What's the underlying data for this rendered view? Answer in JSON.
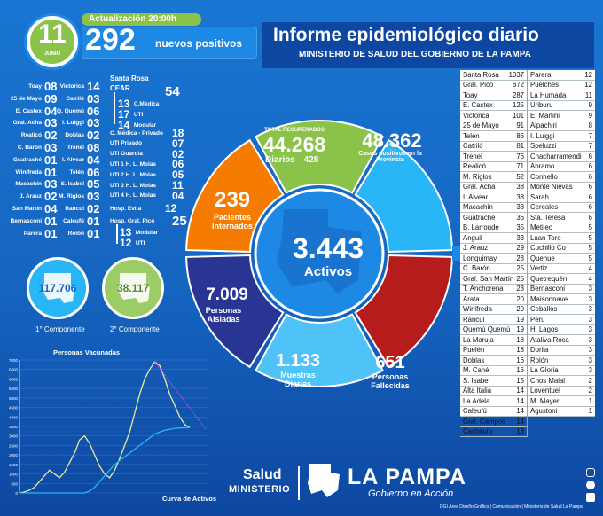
{
  "header": {
    "update_label": "Actualización 20:00h",
    "day": "11",
    "month": "JUNIO",
    "positives_number": "292",
    "positives_label": "nuevos positivos",
    "title": "Informe epidemiológico diario",
    "subtitle": "MINISTERIO DE SALUD DEL GOBIERNO DE LA PAMPA"
  },
  "localities_left": [
    {
      "name": "Toay",
      "value": "08"
    },
    {
      "name": "25 de Mayo",
      "value": "09"
    },
    {
      "name": "E. Castex",
      "value": "04"
    },
    {
      "name": "Gral. Acha",
      "value": "03"
    },
    {
      "name": "Realicó",
      "value": "02"
    },
    {
      "name": "C. Barón",
      "value": "03"
    },
    {
      "name": "Guatraché",
      "value": "01"
    },
    {
      "name": "Winifreda",
      "value": "01"
    },
    {
      "name": "Macachín",
      "value": "03"
    },
    {
      "name": "J. Arauz",
      "value": "02"
    },
    {
      "name": "San Martín",
      "value": "04"
    },
    {
      "name": "Bernasconi",
      "value": "01"
    },
    {
      "name": "Parera",
      "value": "01"
    }
  ],
  "localities_mid": [
    {
      "name": "Victorica",
      "value": "14"
    },
    {
      "name": "Catriló",
      "value": "03"
    },
    {
      "name": "Q. Quemú",
      "value": "06"
    },
    {
      "name": "I. Luiggi",
      "value": "03"
    },
    {
      "name": "Doblas",
      "value": "02"
    },
    {
      "name": "Trenel",
      "value": "08"
    },
    {
      "name": "I. Alvear",
      "value": "04"
    },
    {
      "name": "Telén",
      "value": "06"
    },
    {
      "name": "S. Isabel",
      "value": "05"
    },
    {
      "name": "M. Riglos",
      "value": "03"
    },
    {
      "name": "Rancul",
      "value": "02"
    },
    {
      "name": "Caleufú",
      "value": "01"
    },
    {
      "name": "Rolón",
      "value": "01"
    }
  ],
  "santa_rosa": {
    "label": "Santa Rosa",
    "cear_label": "CEAR",
    "cear_value": "54",
    "cmedica": {
      "value": "13",
      "label": "C.Médica"
    },
    "uti1": {
      "value": "17",
      "label": "UTI"
    },
    "modular": {
      "value": "14",
      "label": "Modular"
    },
    "items": [
      {
        "label": "C. Médica - Privado",
        "value": "18"
      },
      {
        "label": "UTI Privado",
        "value": "07"
      },
      {
        "label": "UTI Guardia",
        "value": "02"
      },
      {
        "label": "UTI 1 H. L. Molas",
        "value": "06"
      },
      {
        "label": "UTI 2 H. L. Molas",
        "value": "05"
      },
      {
        "label": "UTI 3 H. L. Molas",
        "value": "11"
      },
      {
        "label": "UTI 4 H. L. Molas",
        "value": "04"
      }
    ],
    "evita": {
      "label": "Hosp. Evita",
      "value": "12"
    },
    "gpico": {
      "label": "Hosp. Gral. Pico",
      "value": "25"
    },
    "gpico_modular": {
      "value": "13",
      "label": "Modular"
    },
    "gpico_uti": {
      "value": "12",
      "label": "UTI"
    }
  },
  "components": [
    {
      "value": "117.706",
      "label": "1° Componente",
      "color": "#29b6f6"
    },
    {
      "value": "38.117",
      "label": "2° Componente",
      "color": "#9ccc65"
    }
  ],
  "chart": {
    "title_vaccinated": "Personas Vacunadas",
    "title_active": "Curva de Activos",
    "yticks": [
      "7000",
      "6500",
      "6000",
      "5500",
      "5000",
      "4500",
      "4000",
      "3500",
      "3000",
      "2500",
      "2000",
      "1500",
      "1000",
      "500",
      "0"
    ]
  },
  "chart_data": {
    "type": "line",
    "title": "Personas Vacunadas / Curva de Activos",
    "ylim": [
      0,
      7000
    ],
    "series": [
      {
        "name": "Curva de Activos",
        "color": "#e6ee9c",
        "values": [
          0,
          50,
          150,
          300,
          600,
          900,
          1200,
          1000,
          800,
          1100,
          1600,
          2100,
          2800,
          3000,
          2600,
          2000,
          1400,
          1000,
          800,
          1200,
          1800,
          2500,
          3200,
          4200,
          5200,
          6000,
          6500,
          6900,
          6700,
          6000,
          5200,
          4600,
          4000,
          3600,
          3443
        ]
      },
      {
        "name": "Personas Vacunadas",
        "color": "#29b6f6",
        "values": [
          0,
          0,
          0,
          0,
          0,
          0,
          0,
          0,
          0,
          0,
          0,
          0,
          0,
          0,
          100,
          300,
          600,
          900,
          1200,
          1500,
          1700,
          1900,
          2100,
          2300,
          2500,
          2700,
          2900,
          3100,
          3200,
          3300,
          3350,
          3400,
          3420,
          3430,
          3440
        ]
      }
    ],
    "annotation": "Curva de Activos"
  },
  "donut": {
    "recovered_label": "TOTAL RECUPERADOS",
    "recovered_value": "44.268",
    "recovered_daily_label": "Diarios",
    "recovered_daily": "428",
    "province_value": "48.362",
    "province_label": "Casos positivos en la Provincia",
    "hosp_value": "239",
    "hosp_label": "Pacientes Internados",
    "active_value": "3.443",
    "active_label": "Activos",
    "isolated_value": "7.009",
    "isolated_label": "Personas Aisladas",
    "samples_value": "1.133",
    "samples_label": "Muestras Diarias",
    "deaths_value": "651",
    "deaths_label": "Personas Fallecidas",
    "colors": {
      "recovered": "#8bc34a",
      "province": "#29b6f6",
      "hosp": "#f57c00",
      "isolated": "#283593",
      "samples": "#4fc3f7",
      "deaths": "#b71c1c",
      "center": "#1e88e5"
    }
  },
  "table_left": [
    [
      "Santa Rosa",
      "1037"
    ],
    [
      "Gral. Pico",
      "672"
    ],
    [
      "Toay",
      "287"
    ],
    [
      "E. Castex",
      "125"
    ],
    [
      "Victorica",
      "101"
    ],
    [
      "25 de Mayo",
      "91"
    ],
    [
      "Telén",
      "86"
    ],
    [
      "Catriló",
      "81"
    ],
    [
      "Trenel",
      "76"
    ],
    [
      "Realicó",
      "71"
    ],
    [
      "M. Riglos",
      "52"
    ],
    [
      "Gral. Acha",
      "38"
    ],
    [
      "I. Alvear",
      "38"
    ],
    [
      "Macachín",
      "38"
    ],
    [
      "Guatraché",
      "36"
    ],
    [
      "B. Larroude",
      "35"
    ],
    [
      "Anguil",
      "33"
    ],
    [
      "J. Arauz",
      "29"
    ],
    [
      "Lonquimay",
      "28"
    ],
    [
      "C. Barón",
      "25"
    ],
    [
      "Gral. San Martín",
      "25"
    ],
    [
      "T. Anchorena",
      "23"
    ],
    [
      "Arata",
      "20"
    ],
    [
      "Winifreda",
      "20"
    ],
    [
      "Rancul",
      "19"
    ],
    [
      "Quemú Quemú",
      "19"
    ],
    [
      "La Maruja",
      "18"
    ],
    [
      "Puelén",
      "18"
    ],
    [
      "Doblas",
      "16"
    ],
    [
      "M. Cané",
      "16"
    ],
    [
      "S. Isabel",
      "15"
    ],
    [
      "Alta Italia",
      "14"
    ],
    [
      "La Adela",
      "14"
    ],
    [
      "Caleufú",
      "14"
    ],
    [
      "Gral. Campos",
      "14"
    ],
    [
      "Cachirulo",
      "13"
    ]
  ],
  "table_right": [
    [
      "Parera",
      "12"
    ],
    [
      "Puelches",
      "12"
    ],
    [
      "La Humada",
      "11"
    ],
    [
      "Uriburu",
      "9"
    ],
    [
      "E. Martini",
      "9"
    ],
    [
      "Alpachiri",
      "8"
    ],
    [
      "I. Luiggi",
      "7"
    ],
    [
      "Speluzzi",
      "7"
    ],
    [
      "Chacharramendi",
      "6"
    ],
    [
      "Abramo",
      "6"
    ],
    [
      "Conhello",
      "6"
    ],
    [
      "Monte Nievas",
      "6"
    ],
    [
      "Sarah",
      "6"
    ],
    [
      "Cereales",
      "6"
    ],
    [
      "Sta. Teresa",
      "6"
    ],
    [
      "Metileo",
      "5"
    ],
    [
      "Luan Toro",
      "5"
    ],
    [
      "Cuchillo Co",
      "5"
    ],
    [
      "Quehue",
      "5"
    ],
    [
      "Vertiz",
      "4"
    ],
    [
      "Quetrequén",
      "4"
    ],
    [
      "Bernasconi",
      "3"
    ],
    [
      "Maisonnave",
      "3"
    ],
    [
      "Ceballos",
      "3"
    ],
    [
      "Perú",
      "3"
    ],
    [
      "H. Lagos",
      "3"
    ],
    [
      "Ataliva Roca",
      "3"
    ],
    [
      "Dorila",
      "3"
    ],
    [
      "Rolón",
      "3"
    ],
    [
      "La Gloria",
      "3"
    ],
    [
      "Chos Malal",
      "2"
    ],
    [
      "Loventuel",
      "2"
    ],
    [
      "M. Mayer",
      "1"
    ],
    [
      "Agustoni",
      "1"
    ]
  ],
  "footer": {
    "salud": "Salud",
    "ministerio": "MINISTERIO",
    "lapampa": "LA PAMPA",
    "gobierno": "Gobierno en Acción",
    "credit": "DGI Área Diseño Gráfico | Comunicación | Ministerio de Salud La Pampa"
  }
}
